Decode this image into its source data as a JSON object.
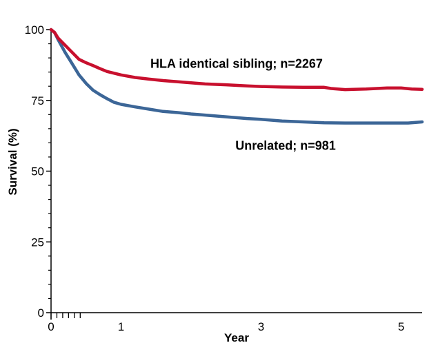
{
  "chart_data": {
    "type": "line",
    "title": "",
    "xlabel": "Year",
    "ylabel": "Survival (%)",
    "xlim": [
      0,
      5.3
    ],
    "ylim": [
      0,
      100
    ],
    "x_ticks": [
      {
        "value": 0,
        "label": "0"
      },
      {
        "value": 1,
        "label": "1"
      },
      {
        "value": 3,
        "label": "3"
      },
      {
        "value": 5,
        "label": "5"
      }
    ],
    "y_ticks": [
      {
        "value": 0,
        "label": "0"
      },
      {
        "value": 25,
        "label": "25"
      },
      {
        "value": 50,
        "label": "50"
      },
      {
        "value": 75,
        "label": "75"
      },
      {
        "value": 100,
        "label": "100"
      }
    ],
    "grid": false,
    "legend": "none",
    "series": [
      {
        "name": "HLA identical sibling; n=2267",
        "color": "#C8102E",
        "points": [
          [
            0,
            100
          ],
          [
            0.05,
            99
          ],
          [
            0.1,
            97
          ],
          [
            0.2,
            94.5
          ],
          [
            0.3,
            92
          ],
          [
            0.4,
            89.5
          ],
          [
            0.5,
            88.3
          ],
          [
            0.6,
            87.3
          ],
          [
            0.7,
            86.2
          ],
          [
            0.8,
            85.2
          ],
          [
            0.9,
            84.6
          ],
          [
            1.0,
            84.0
          ],
          [
            1.2,
            83.1
          ],
          [
            1.4,
            82.5
          ],
          [
            1.6,
            82.0
          ],
          [
            1.8,
            81.6
          ],
          [
            2.0,
            81.2
          ],
          [
            2.2,
            80.8
          ],
          [
            2.5,
            80.5
          ],
          [
            2.8,
            80.1
          ],
          [
            3.0,
            79.9
          ],
          [
            3.3,
            79.7
          ],
          [
            3.6,
            79.6
          ],
          [
            3.9,
            79.6
          ],
          [
            4.0,
            79.2
          ],
          [
            4.2,
            78.8
          ],
          [
            4.5,
            79.0
          ],
          [
            4.8,
            79.4
          ],
          [
            5.0,
            79.4
          ],
          [
            5.15,
            79.0
          ],
          [
            5.3,
            78.9
          ]
        ]
      },
      {
        "name": "Unrelated; n=981",
        "color": "#3C6697",
        "points": [
          [
            0,
            100
          ],
          [
            0.05,
            99
          ],
          [
            0.1,
            96.5
          ],
          [
            0.2,
            92
          ],
          [
            0.3,
            88
          ],
          [
            0.4,
            84
          ],
          [
            0.5,
            81
          ],
          [
            0.6,
            78.6
          ],
          [
            0.7,
            77
          ],
          [
            0.8,
            75.6
          ],
          [
            0.9,
            74.3
          ],
          [
            1.0,
            73.6
          ],
          [
            1.2,
            72.7
          ],
          [
            1.4,
            71.9
          ],
          [
            1.6,
            71.1
          ],
          [
            1.8,
            70.7
          ],
          [
            2.0,
            70.2
          ],
          [
            2.2,
            69.8
          ],
          [
            2.5,
            69.2
          ],
          [
            2.8,
            68.6
          ],
          [
            3.0,
            68.3
          ],
          [
            3.3,
            67.7
          ],
          [
            3.6,
            67.4
          ],
          [
            3.9,
            67.1
          ],
          [
            4.2,
            67.0
          ],
          [
            4.5,
            67.0
          ],
          [
            4.8,
            67.0
          ],
          [
            5.1,
            67.0
          ],
          [
            5.3,
            67.4
          ]
        ]
      }
    ],
    "annotations": [
      {
        "text": "HLA identical sibling;  n=2267",
        "x": 2.65,
        "y": 86.5,
        "series_index": 0
      },
      {
        "text": "Unrelated; n=981",
        "x": 3.35,
        "y": 57.5,
        "series_index": 1
      }
    ]
  }
}
